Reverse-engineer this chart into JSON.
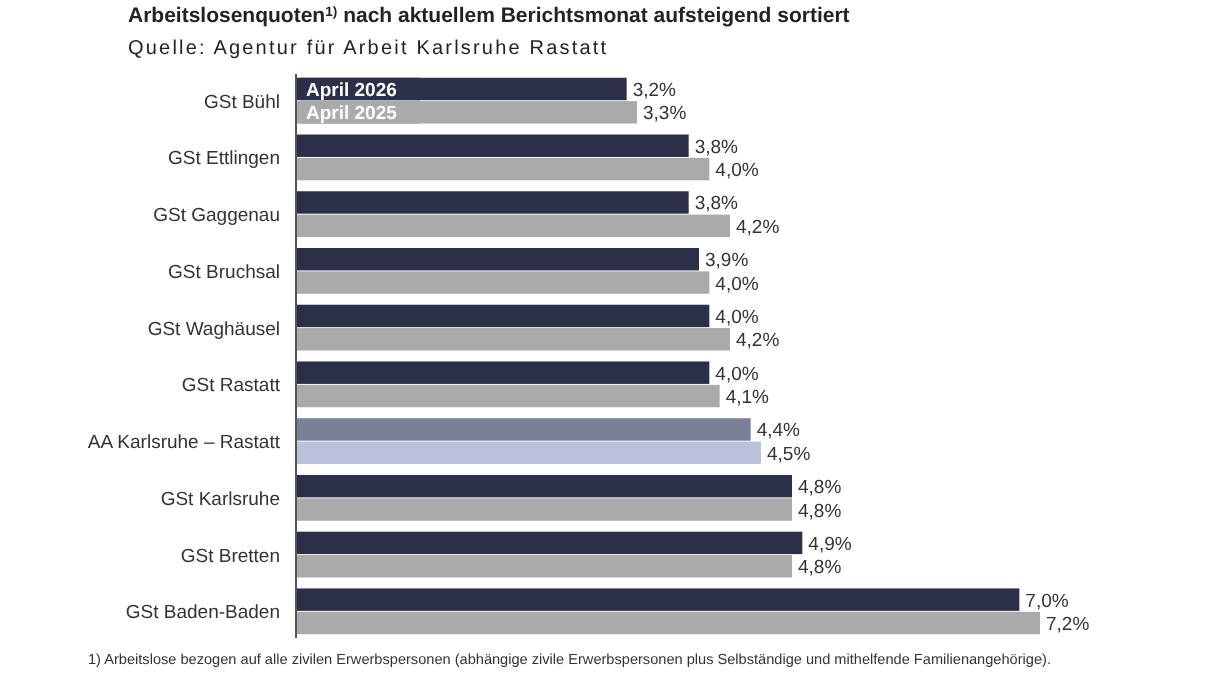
{
  "chart_data": {
    "type": "bar",
    "orientation": "horizontal",
    "title": "Arbeitslosenquoten$^{1)}$ nach aktuellem Berichtsmonat aufsteigend sortiert",
    "subtitle": "Quelle: Agentur für Arbeit Karlsruhe Rastatt",
    "categories": [
      "GSt Bühl",
      "GSt Ettlingen",
      "GSt Gaggenau",
      "GSt Bruchsal",
      "GSt Waghäusel",
      "GSt Rastatt",
      "AA Karlsruhe – Rastatt",
      "GSt Karlsruhe",
      "GSt Bretten",
      "GSt Baden-Baden"
    ],
    "series": [
      {
        "name": "April 2026",
        "color": "#2b3048",
        "colors": [
          "#2b3048",
          "#2b3048",
          "#2b3048",
          "#2b3048",
          "#2b3048",
          "#2b3048",
          "#7a8098",
          "#2b3048",
          "#2b3048",
          "#2b3048"
        ],
        "values": [
          3.2,
          3.8,
          3.8,
          3.9,
          4.0,
          4.0,
          4.4,
          4.8,
          4.9,
          7.0
        ],
        "value_labels": [
          "3,2%",
          "3,8%",
          "3,8%",
          "3,9%",
          "4,0%",
          "4,0%",
          "4,4%",
          "4,8%",
          "4,9%",
          "7,0%"
        ]
      },
      {
        "name": "April 2025",
        "color": "#aaaaaa",
        "colors": [
          "#aaaaaa",
          "#aaaaaa",
          "#aaaaaa",
          "#aaaaaa",
          "#aaaaaa",
          "#aaaaaa",
          "#b9c2da",
          "#aaaaaa",
          "#aaaaaa",
          "#aaaaaa"
        ],
        "values": [
          3.3,
          4.0,
          4.2,
          4.0,
          4.2,
          4.1,
          4.5,
          4.8,
          4.8,
          7.2
        ],
        "value_labels": [
          "3,3%",
          "4,0%",
          "4,2%",
          "4,0%",
          "4,2%",
          "4,1%",
          "4,5%",
          "4,8%",
          "4,8%",
          "7,2%"
        ]
      }
    ],
    "legend": "top left",
    "annotations": [
      "1) Arbeitslose bezogen auf alle zivilen Erwerbspersonen (abhängige zivile Erwerbspersonen plus Selbständige und mithelfende Familienangehörige)."
    ]
  }
}
